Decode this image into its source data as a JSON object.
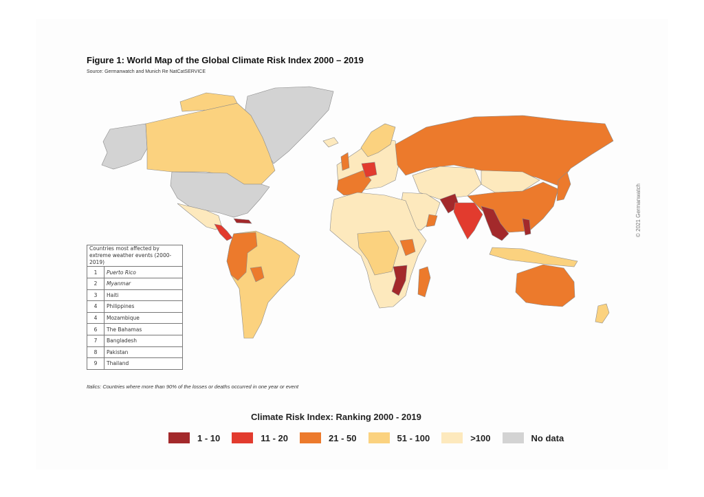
{
  "figure": {
    "title": "Figure 1: World Map of the Global Climate Risk Index 2000 – 2019",
    "source": "Source: Germanwatch and Munich Re NatCatSERVICE",
    "copyright": "© 2021 Germanwatch"
  },
  "ranking_table": {
    "header": "Countries most affected by extreme weather events (2000-2019)",
    "rows": [
      {
        "rank": "1",
        "country": "Puerto Rico",
        "italic": true
      },
      {
        "rank": "2",
        "country": "Myanmar",
        "italic": true
      },
      {
        "rank": "3",
        "country": "Haiti",
        "italic": false
      },
      {
        "rank": "4",
        "country": "Philippines",
        "italic": false
      },
      {
        "rank": "4",
        "country": "Mozambique",
        "italic": false
      },
      {
        "rank": "6",
        "country": "The Bahamas",
        "italic": false
      },
      {
        "rank": "7",
        "country": "Bangladesh",
        "italic": false
      },
      {
        "rank": "8",
        "country": "Pakistan",
        "italic": false
      },
      {
        "rank": "9",
        "country": "Thailand",
        "italic": false
      }
    ]
  },
  "note": "Italics: Countries where more than 90% of the losses or deaths occurred in one year or event",
  "legend": {
    "title": "Climate Risk Index: Ranking 2000 - 2019",
    "items": [
      {
        "label": "1 - 10",
        "color": "#a3292b"
      },
      {
        "label": "11 - 20",
        "color": "#e23b2e"
      },
      {
        "label": "21 - 50",
        "color": "#ec7a2c"
      },
      {
        "label": "51 - 100",
        "color": "#fbd27f"
      },
      {
        "label": ">100",
        "color": "#fde9bd"
      },
      {
        "label": "No data",
        "color": "#d3d3d3"
      }
    ]
  }
}
